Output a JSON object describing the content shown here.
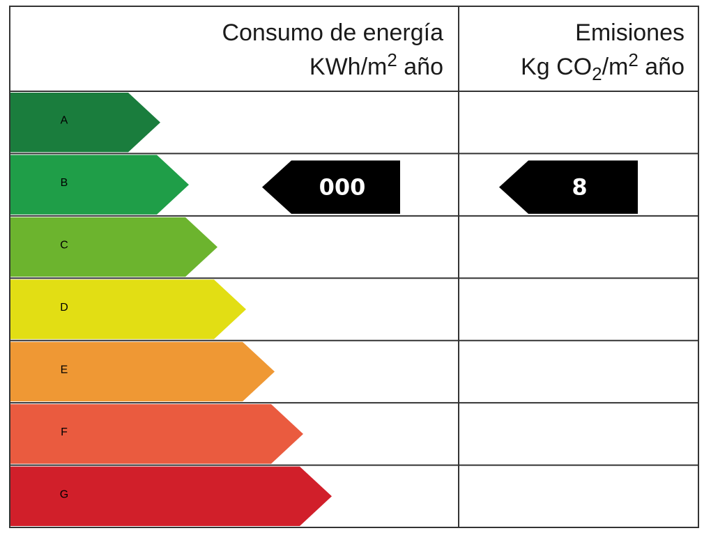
{
  "header": {
    "consumption": {
      "title": "Consumo de energía",
      "unit": [
        "KWh/m",
        "2",
        " año"
      ]
    },
    "emissions": {
      "title": "Emisiones",
      "unit": [
        "Kg CO",
        "2",
        "/m",
        "2",
        " año"
      ]
    }
  },
  "ratings": [
    {
      "letter": "A",
      "color": "#1a7d3d"
    },
    {
      "letter": "B",
      "color": "#1f9e48"
    },
    {
      "letter": "C",
      "color": "#6cb42e"
    },
    {
      "letter": "D",
      "color": "#e2de14"
    },
    {
      "letter": "E",
      "color": "#ef9834"
    },
    {
      "letter": "F",
      "color": "#ea5b3f"
    },
    {
      "letter": "G",
      "color": "#d11f2a"
    }
  ],
  "indicators": {
    "consumption": {
      "label": "000",
      "rating": "B"
    },
    "emissions": {
      "label": "8",
      "rating": "B"
    }
  }
}
